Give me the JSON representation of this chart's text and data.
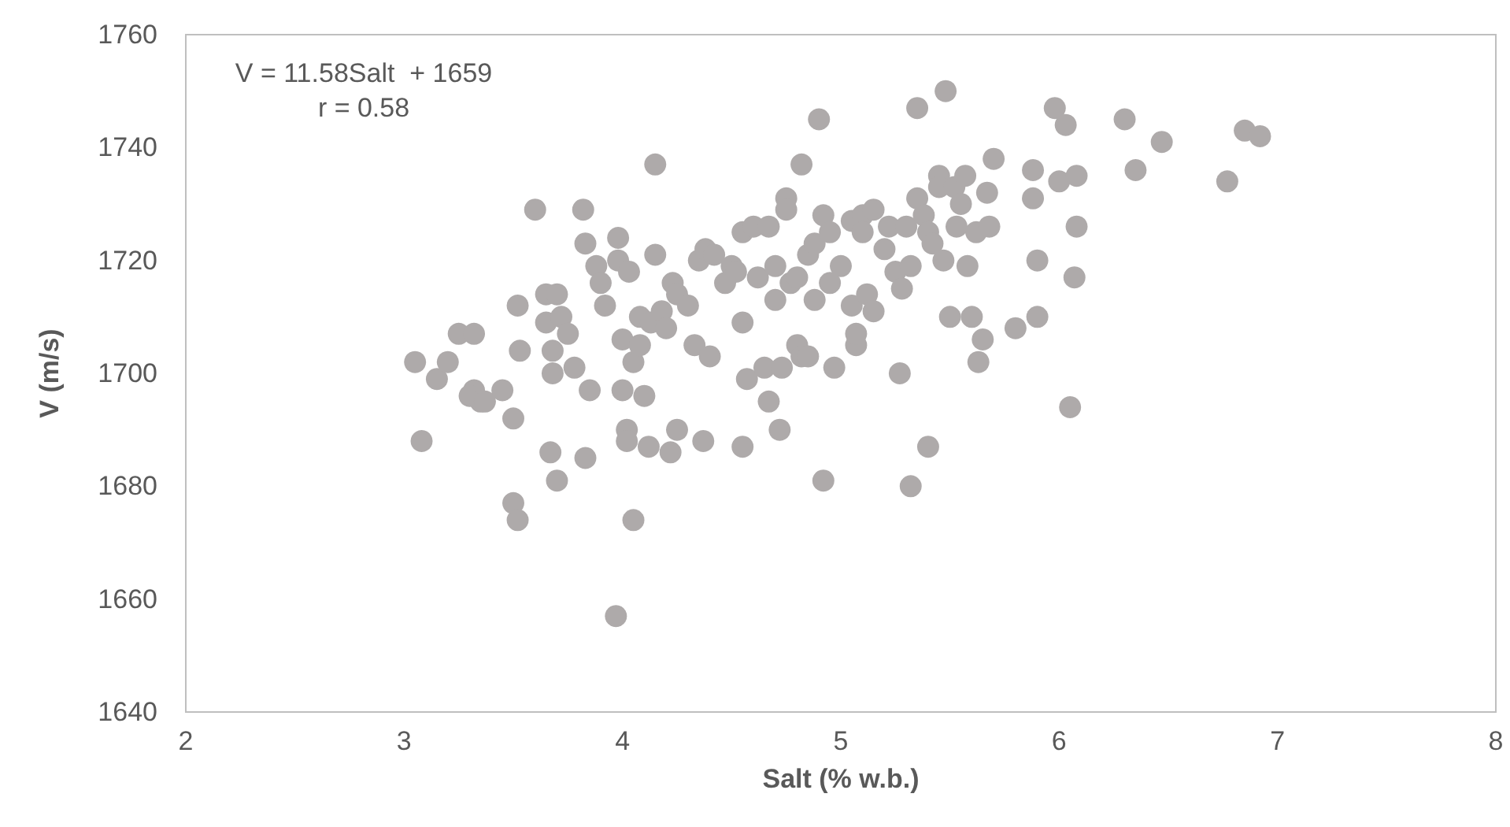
{
  "chart_data": {
    "type": "scatter",
    "xlabel": "Salt (% w.b.)",
    "ylabel": "V (m/s)",
    "annotations": [
      "V = 11.58Salt  + 1659",
      "r = 0.58"
    ],
    "xlim": [
      2,
      8
    ],
    "xticks": [
      2,
      3,
      4,
      5,
      6,
      7,
      8
    ],
    "ylim": [
      1640,
      1760
    ],
    "yticks": [
      1640,
      1660,
      1680,
      1700,
      1720,
      1740,
      1760
    ],
    "grid": false,
    "marker": "circle",
    "series": [
      {
        "color": "#aeaaaa",
        "x": [
          3.05,
          3.08,
          3.15,
          3.2,
          3.25,
          3.32,
          3.32,
          3.3,
          3.35,
          3.37,
          3.45,
          3.5,
          3.5,
          3.52,
          3.52,
          3.53,
          3.6,
          3.65,
          3.65,
          3.67,
          3.68,
          3.68,
          3.7,
          3.7,
          3.72,
          3.75,
          3.78,
          3.82,
          3.83,
          3.85,
          3.83,
          3.88,
          3.9,
          3.92,
          3.97,
          3.98,
          3.98,
          4.0,
          4.0,
          4.02,
          4.02,
          4.03,
          4.05,
          4.05,
          4.08,
          4.08,
          4.1,
          4.12,
          4.13,
          4.15,
          4.15,
          4.18,
          4.2,
          4.22,
          4.23,
          4.25,
          4.25,
          4.3,
          4.33,
          4.35,
          4.37,
          4.38,
          4.42,
          4.4,
          4.47,
          4.5,
          4.52,
          4.55,
          4.55,
          4.55,
          4.57,
          4.6,
          4.62,
          4.65,
          4.67,
          4.67,
          4.7,
          4.7,
          4.72,
          4.73,
          4.75,
          4.75,
          4.77,
          4.8,
          4.8,
          4.82,
          4.82,
          4.85,
          4.85,
          4.88,
          4.88,
          4.9,
          4.92,
          4.92,
          4.95,
          4.95,
          4.97,
          5.0,
          5.05,
          5.05,
          5.07,
          5.07,
          5.1,
          5.1,
          5.12,
          5.15,
          5.15,
          5.2,
          5.22,
          5.25,
          5.27,
          5.28,
          5.3,
          5.32,
          5.32,
          5.35,
          5.35,
          5.38,
          5.4,
          5.4,
          5.42,
          5.45,
          5.45,
          5.47,
          5.48,
          5.5,
          5.52,
          5.53,
          5.55,
          5.57,
          5.58,
          5.6,
          5.62,
          5.63,
          5.65,
          5.67,
          5.68,
          5.7,
          5.8,
          5.88,
          5.88,
          5.9,
          5.9,
          5.98,
          6.0,
          6.03,
          6.05,
          6.07,
          6.08,
          6.08,
          6.3,
          6.35,
          6.47,
          6.77,
          6.85,
          6.92
        ],
        "values": [
          1702,
          1688,
          1699,
          1702,
          1707,
          1707,
          1697,
          1696,
          1695,
          1695,
          1697,
          1692,
          1677,
          1674,
          1712,
          1704,
          1729,
          1709,
          1714,
          1686,
          1700,
          1704,
          1714,
          1681,
          1710,
          1707,
          1701,
          1729,
          1723,
          1697,
          1685,
          1719,
          1716,
          1712,
          1657,
          1724,
          1720,
          1706,
          1697,
          1690,
          1688,
          1718,
          1702,
          1674,
          1710,
          1705,
          1696,
          1687,
          1709,
          1721,
          1737,
          1711,
          1708,
          1686,
          1716,
          1714,
          1690,
          1712,
          1705,
          1720,
          1688,
          1722,
          1721,
          1703,
          1716,
          1719,
          1718,
          1725,
          1709,
          1687,
          1699,
          1726,
          1717,
          1701,
          1726,
          1695,
          1713,
          1719,
          1690,
          1701,
          1731,
          1729,
          1716,
          1717,
          1705,
          1737,
          1703,
          1721,
          1703,
          1713,
          1723,
          1745,
          1728,
          1681,
          1725,
          1716,
          1701,
          1719,
          1712,
          1727,
          1705,
          1707,
          1728,
          1725,
          1714,
          1729,
          1711,
          1722,
          1726,
          1718,
          1700,
          1715,
          1726,
          1680,
          1719,
          1731,
          1747,
          1728,
          1725,
          1687,
          1723,
          1735,
          1733,
          1720,
          1750,
          1710,
          1733,
          1726,
          1730,
          1735,
          1719,
          1710,
          1725,
          1702,
          1706,
          1732,
          1726,
          1738,
          1708,
          1736,
          1731,
          1710,
          1720,
          1747,
          1734,
          1744,
          1694,
          1717,
          1726,
          1735,
          1745,
          1736,
          1741,
          1734,
          1743,
          1742
        ]
      }
    ]
  }
}
